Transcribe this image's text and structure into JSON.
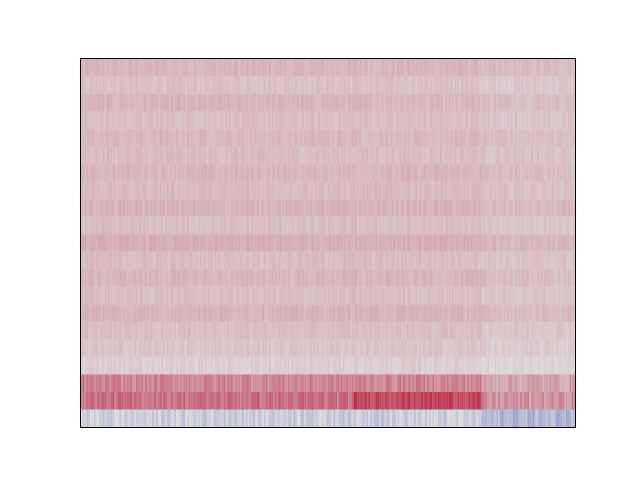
{
  "chart_data": {
    "type": "heatmap",
    "title": "",
    "xlabel": "",
    "ylabel": "",
    "axes_visible": false,
    "colormap": "coolwarm",
    "value_range": [
      -1,
      1
    ],
    "n_columns": 270,
    "n_rows": 20,
    "row_base_values": [
      0.19,
      0.14,
      0.19,
      0.15,
      0.18,
      0.16,
      0.19,
      0.17,
      0.2,
      0.15,
      0.22,
      0.16,
      0.19,
      0.15,
      0.2,
      0.15,
      0.12,
      0.08,
      0.28,
      0.55
    ],
    "row_segments": {
      "18": {
        "early": 0.42,
        "late": 0.28
      },
      "19": {
        "early": 0.52,
        "middle": 0.72,
        "late": 0.35
      }
    },
    "row_bottom_values": {
      "early": -0.1,
      "late": -0.28
    },
    "segment_bounds": {
      "middle_start": 0.55,
      "late_start": 0.81
    }
  }
}
